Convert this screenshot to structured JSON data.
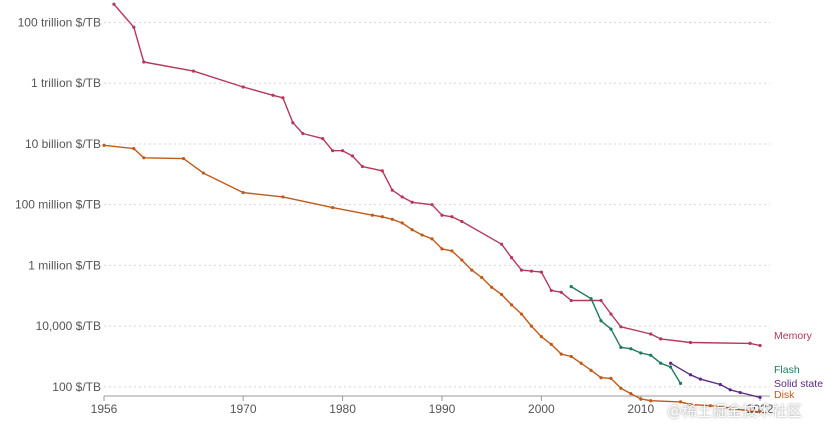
{
  "chart_data": {
    "type": "line",
    "title": "",
    "xlabel": "",
    "ylabel": "",
    "log_scale_y": true,
    "grid": "horizontal dotted",
    "xlim": [
      1956,
      2023
    ],
    "ylim": [
      50,
      300000000000000
    ],
    "y_ticks": [
      {
        "value": 100000000000000,
        "label": "100 trillion $/TB"
      },
      {
        "value": 1000000000000,
        "label": "1 trillion $/TB"
      },
      {
        "value": 10000000000,
        "label": "10 billion $/TB"
      },
      {
        "value": 100000000,
        "label": "100 million $/TB"
      },
      {
        "value": 1000000,
        "label": "1 million $/TB"
      },
      {
        "value": 10000,
        "label": "10,000 $/TB"
      },
      {
        "value": 100,
        "label": "100 $/TB"
      }
    ],
    "x_ticks": [
      {
        "value": 1956,
        "label": "1956"
      },
      {
        "value": 1970,
        "label": "1970"
      },
      {
        "value": 1980,
        "label": "1980"
      },
      {
        "value": 1990,
        "label": "1990"
      },
      {
        "value": 2000,
        "label": "2000"
      },
      {
        "value": 2010,
        "label": "2010"
      },
      {
        "value": 2022,
        "label": "2022"
      }
    ],
    "series": [
      {
        "name": "Memory",
        "color": "#b5385b",
        "points": [
          [
            1957,
            400000000000000
          ],
          [
            1959,
            70000000000000
          ],
          [
            1960,
            5000000000000
          ],
          [
            1965,
            2500000000000
          ],
          [
            1970,
            750000000000
          ],
          [
            1973,
            400000000000
          ],
          [
            1974,
            330000000000
          ],
          [
            1975,
            50000000000
          ],
          [
            1976,
            22000000000
          ],
          [
            1978,
            15000000000
          ],
          [
            1979,
            6000000000
          ],
          [
            1980,
            6000000000
          ],
          [
            1981,
            4000000000
          ],
          [
            1982,
            1800000000
          ],
          [
            1984,
            1300000000
          ],
          [
            1985,
            300000000
          ],
          [
            1986,
            180000000
          ],
          [
            1987,
            120000000
          ],
          [
            1989,
            100000000
          ],
          [
            1990,
            45000000
          ],
          [
            1991,
            40000000
          ],
          [
            1992,
            28000000
          ],
          [
            1996,
            5000000
          ],
          [
            1997,
            1800000
          ],
          [
            1998,
            700000
          ],
          [
            1999,
            650000
          ],
          [
            2000,
            600000
          ],
          [
            2001,
            150000
          ],
          [
            2002,
            130000
          ],
          [
            2003,
            70000
          ],
          [
            2006,
            70000
          ],
          [
            2007,
            25000
          ],
          [
            2008,
            9500
          ],
          [
            2011,
            5500
          ],
          [
            2012,
            3800
          ],
          [
            2015,
            2900
          ],
          [
            2021,
            2700
          ],
          [
            2022,
            2300
          ]
        ]
      },
      {
        "name": "Disk",
        "color": "#c05a1a",
        "points": [
          [
            1956,
            9000000000
          ],
          [
            1959,
            7000000000
          ],
          [
            1960,
            3500000000
          ],
          [
            1964,
            3300000000
          ],
          [
            1966,
            1100000000
          ],
          [
            1970,
            250000000
          ],
          [
            1974,
            180000000
          ],
          [
            1979,
            80000000
          ],
          [
            1983,
            45000000
          ],
          [
            1984,
            40000000
          ],
          [
            1985,
            33000000
          ],
          [
            1986,
            25000000
          ],
          [
            1987,
            15000000
          ],
          [
            1988,
            10000000
          ],
          [
            1989,
            7500000
          ],
          [
            1990,
            3500000
          ],
          [
            1991,
            3000000
          ],
          [
            1992,
            1500000
          ],
          [
            1993,
            700000
          ],
          [
            1994,
            400000
          ],
          [
            1995,
            190000
          ],
          [
            1996,
            110000
          ],
          [
            1997,
            50000
          ],
          [
            1998,
            25000
          ],
          [
            1999,
            10000
          ],
          [
            2000,
            4500
          ],
          [
            2001,
            2500
          ],
          [
            2002,
            1200
          ],
          [
            2003,
            1000
          ],
          [
            2004,
            600
          ],
          [
            2005,
            350
          ],
          [
            2006,
            200
          ],
          [
            2007,
            190
          ],
          [
            2008,
            90
          ],
          [
            2009,
            60
          ],
          [
            2010,
            40
          ],
          [
            2011,
            35
          ],
          [
            2014,
            32
          ],
          [
            2015,
            26
          ],
          [
            2017,
            24
          ],
          [
            2019,
            20
          ],
          [
            2021,
            16
          ],
          [
            2022,
            15
          ]
        ]
      },
      {
        "name": "Flash",
        "color": "#1f7a5a",
        "points": [
          [
            2003,
            200000
          ],
          [
            2005,
            80000
          ],
          [
            2006,
            15000
          ],
          [
            2007,
            8000
          ],
          [
            2008,
            2000
          ],
          [
            2009,
            1800
          ],
          [
            2010,
            1300
          ],
          [
            2011,
            1100
          ],
          [
            2012,
            600
          ],
          [
            2013,
            450
          ],
          [
            2014,
            130
          ]
        ]
      },
      {
        "name": "Solid state",
        "color": "#5b2a86",
        "points": [
          [
            2013,
            600
          ],
          [
            2015,
            250
          ],
          [
            2016,
            180
          ],
          [
            2018,
            120
          ],
          [
            2019,
            80
          ],
          [
            2020,
            65
          ],
          [
            2022,
            45
          ]
        ]
      }
    ]
  },
  "watermark_text": "@稀土掘金技术社区"
}
